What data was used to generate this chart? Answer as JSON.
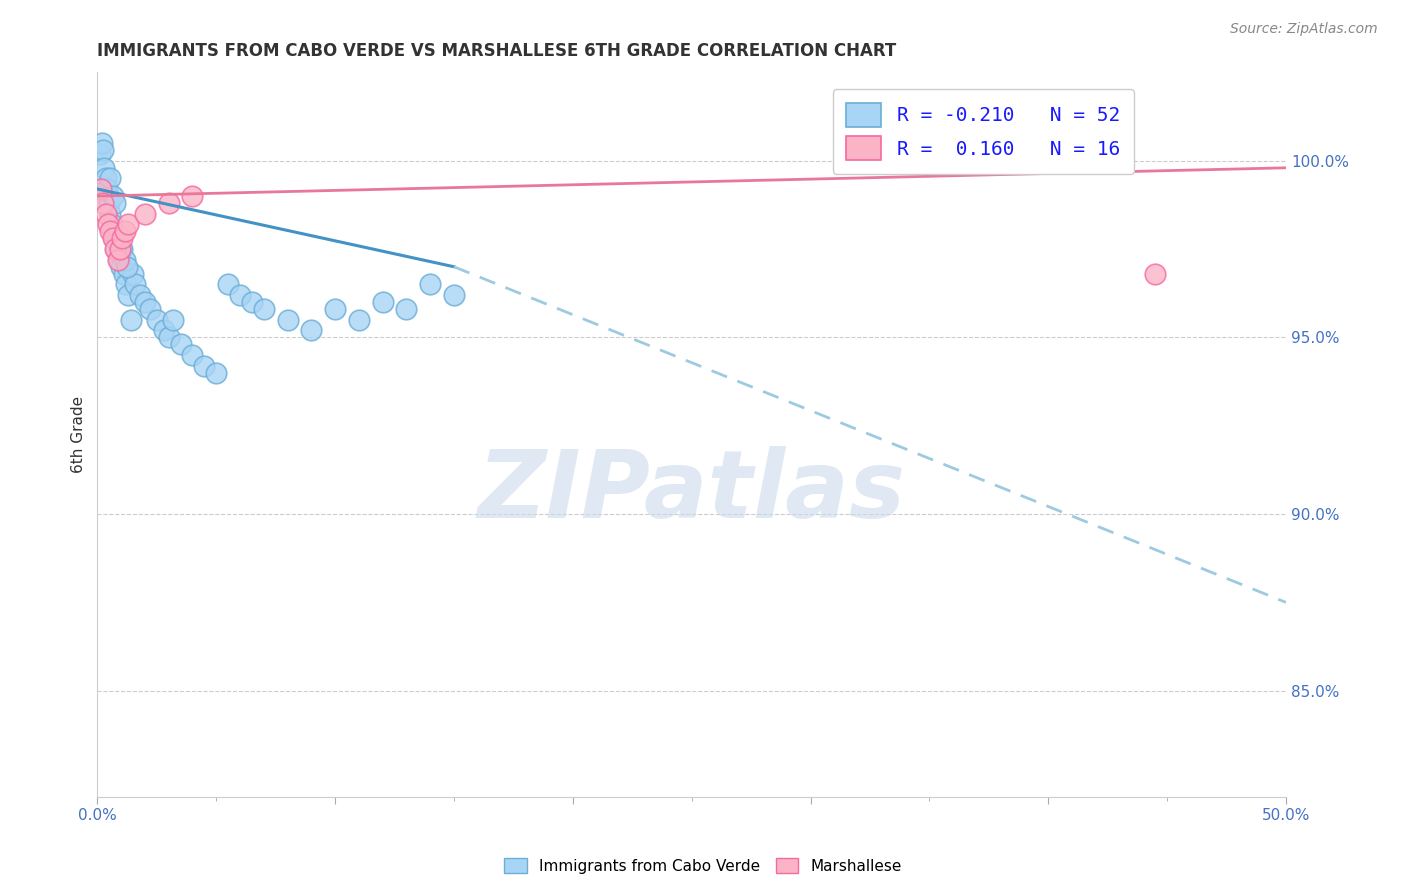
{
  "title": "IMMIGRANTS FROM CABO VERDE VS MARSHALLESE 6TH GRADE CORRELATION CHART",
  "source": "Source: ZipAtlas.com",
  "ylabel_label": "6th Grade",
  "x_min": 0.0,
  "x_max": 50.0,
  "y_min": 82.0,
  "y_max": 102.5,
  "yticks": [
    85.0,
    90.0,
    95.0,
    100.0
  ],
  "ytick_labels": [
    "85.0%",
    "90.0%",
    "95.0%",
    "100.0%"
  ],
  "xtick_labels": [
    "0.0%",
    "",
    "",
    "",
    "",
    "50.0%"
  ],
  "blue_scatter_color": "#a8d4f5",
  "blue_scatter_edge": "#6baed6",
  "pink_scatter_color": "#fbb4c6",
  "pink_scatter_edge": "#f768a1",
  "trend_blue_solid_color": "#4292c6",
  "trend_pink_solid_color": "#e87899",
  "trend_blue_dashed_color": "#9ecae1",
  "R_blue": -0.21,
  "N_blue": 52,
  "R_pink": 0.16,
  "N_pink": 16,
  "legend_text_color": "#1a1aff",
  "watermark_text": "ZIPatlas",
  "watermark_color": "#ccdaeb",
  "blue_line_x0": 0.0,
  "blue_line_y0": 99.2,
  "blue_line_x1": 15.0,
  "blue_line_y1": 97.0,
  "blue_dash_x0": 15.0,
  "blue_dash_y0": 97.0,
  "blue_dash_x1": 50.0,
  "blue_dash_y1": 87.5,
  "pink_line_x0": 0.0,
  "pink_line_y0": 99.0,
  "pink_line_x1": 50.0,
  "pink_line_y1": 99.8,
  "blue_pts_x": [
    0.1,
    0.2,
    0.25,
    0.3,
    0.35,
    0.4,
    0.45,
    0.5,
    0.55,
    0.6,
    0.65,
    0.7,
    0.8,
    0.9,
    1.0,
    1.1,
    1.2,
    1.3,
    1.5,
    1.6,
    1.8,
    2.0,
    2.2,
    2.5,
    2.8,
    3.0,
    3.5,
    4.0,
    4.5,
    5.0,
    5.5,
    6.0,
    6.5,
    7.0,
    8.0,
    9.0,
    10.0,
    11.0,
    12.0,
    13.0,
    14.0,
    15.0,
    1.4,
    0.55,
    0.65,
    0.75,
    1.05,
    1.15,
    1.25,
    0.85,
    0.95,
    3.2
  ],
  "blue_pts_y": [
    100.2,
    100.5,
    100.3,
    99.8,
    99.5,
    99.2,
    99.0,
    98.8,
    98.5,
    98.2,
    98.0,
    97.8,
    97.5,
    97.2,
    97.0,
    96.8,
    96.5,
    96.2,
    96.8,
    96.5,
    96.2,
    96.0,
    95.8,
    95.5,
    95.2,
    95.0,
    94.8,
    94.5,
    94.2,
    94.0,
    96.5,
    96.2,
    96.0,
    95.8,
    95.5,
    95.2,
    95.8,
    95.5,
    96.0,
    95.8,
    96.5,
    96.2,
    95.5,
    99.5,
    99.0,
    98.8,
    97.5,
    97.2,
    97.0,
    97.8,
    97.5,
    95.5
  ],
  "pink_pts_x": [
    0.15,
    0.25,
    0.35,
    0.45,
    0.55,
    0.65,
    0.75,
    0.85,
    0.95,
    1.05,
    1.15,
    1.3,
    2.0,
    3.0,
    4.0,
    44.5
  ],
  "pink_pts_y": [
    99.2,
    98.8,
    98.5,
    98.2,
    98.0,
    97.8,
    97.5,
    97.2,
    97.5,
    97.8,
    98.0,
    98.2,
    98.5,
    98.8,
    99.0,
    96.8
  ]
}
